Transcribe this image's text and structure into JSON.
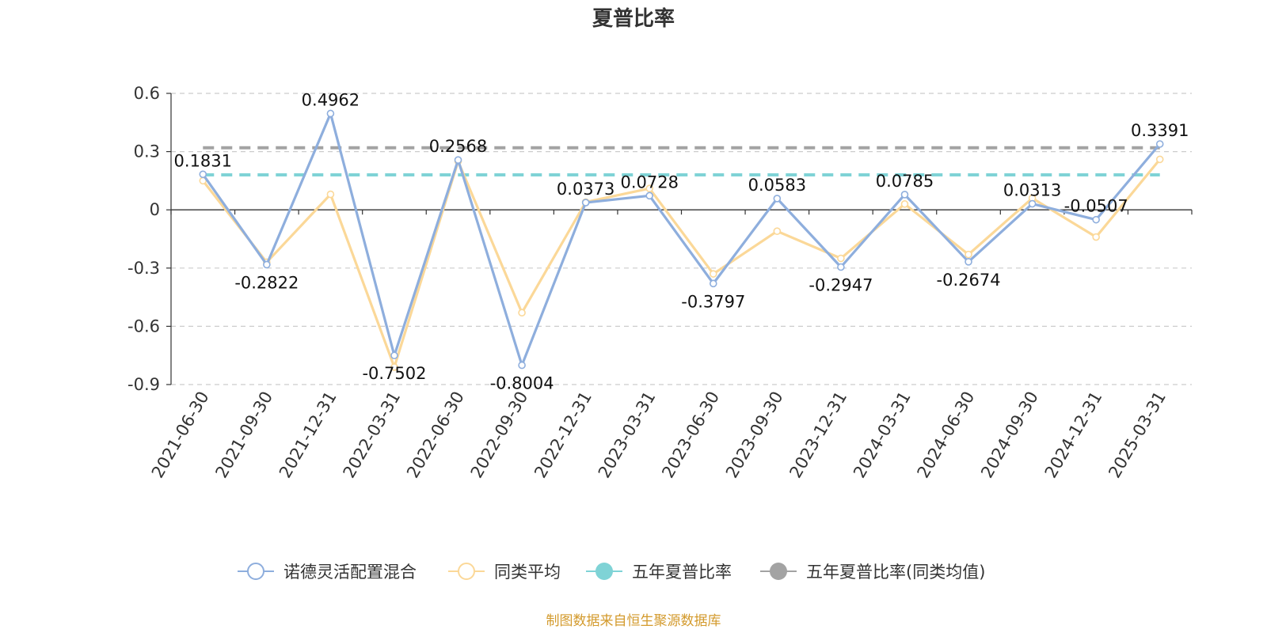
{
  "source_note": "制图数据来自恒生聚源数据库",
  "colors": {
    "fund": "#8eaedd",
    "peer": "#fbd898",
    "ref_fund": "#7fd3d6",
    "ref_peer": "#a3a3a3",
    "source": "#d39a2c",
    "grid": "#cccccc",
    "axis": "#333333"
  },
  "legend": [
    {
      "label": "诺德灵活配置混合",
      "marker": "hollow-circle-line",
      "color": "#8eaedd"
    },
    {
      "label": "同类平均",
      "marker": "hollow-circle-line",
      "color": "#fbd898"
    },
    {
      "label": "五年夏普比率",
      "marker": "filled-circle-line",
      "color": "#7fd3d6"
    },
    {
      "label": "五年夏普比率(同类均值)",
      "marker": "filled-circle-line",
      "color": "#a3a3a3"
    }
  ],
  "chart_data": {
    "type": "line",
    "title": "夏普比率",
    "xlabel": "",
    "ylabel": "",
    "categories": [
      "2021-06-30",
      "2021-09-30",
      "2021-12-31",
      "2022-03-31",
      "2022-06-30",
      "2022-09-30",
      "2022-12-31",
      "2023-03-31",
      "2023-06-30",
      "2023-09-30",
      "2023-12-31",
      "2024-03-31",
      "2024-06-30",
      "2024-09-30",
      "2024-12-31",
      "2025-03-31"
    ],
    "ylim": [
      -0.9,
      0.6
    ],
    "yticks": [
      0.6,
      0.3,
      0,
      -0.3,
      -0.6,
      -0.9
    ],
    "ytick_labels": [
      "0.6",
      "0.3",
      "0",
      "-0.3",
      "-0.6",
      "-0.9"
    ],
    "grid": "horizontal-dashed",
    "legend_position": "bottom",
    "series": [
      {
        "name": "诺德灵活配置混合",
        "color": "#8eaedd",
        "values": [
          0.1831,
          -0.2822,
          0.4962,
          -0.7502,
          0.2568,
          -0.8004,
          0.0373,
          0.0728,
          -0.3797,
          0.0583,
          -0.2947,
          0.0785,
          -0.2674,
          0.0313,
          -0.0507,
          0.3391
        ],
        "labels": [
          "0.1831",
          "-0.2822",
          "0.4962",
          "-0.7502",
          "0.2568",
          "-0.8004",
          "0.0373",
          "0.0728",
          "-0.3797",
          "0.0583",
          "-0.2947",
          "0.0785",
          "-0.2674",
          "0.0313",
          "-0.0507",
          "0.3391"
        ]
      },
      {
        "name": "同类平均",
        "color": "#fbd898",
        "values": [
          0.15,
          -0.27,
          0.08,
          -0.81,
          0.25,
          -0.53,
          0.04,
          0.11,
          -0.33,
          -0.11,
          -0.25,
          0.03,
          -0.23,
          0.06,
          -0.14,
          0.26
        ]
      }
    ],
    "reference_lines": [
      {
        "name": "五年夏普比率",
        "value": 0.18,
        "color": "#7fd3d6",
        "style": "dashed"
      },
      {
        "name": "五年夏普比率(同类均值)",
        "value": 0.32,
        "color": "#a3a3a3",
        "style": "dashed"
      }
    ]
  }
}
